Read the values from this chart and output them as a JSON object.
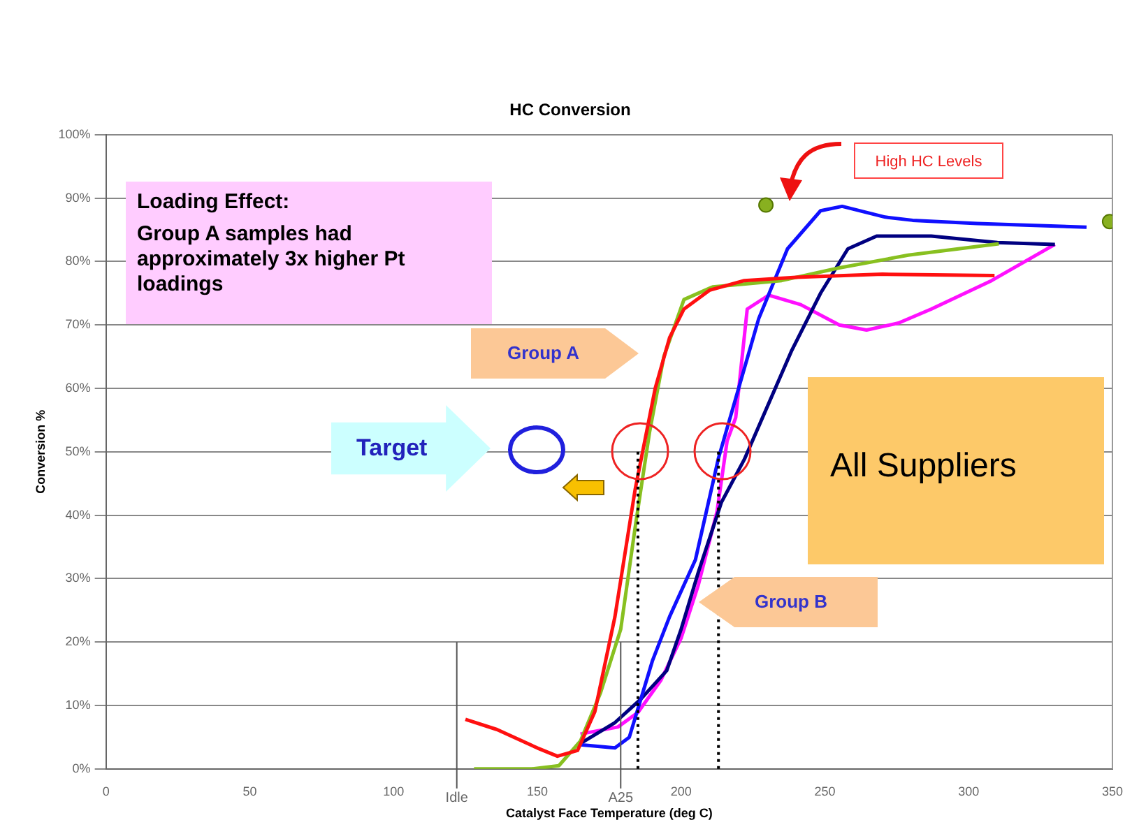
{
  "chart_data": {
    "type": "line",
    "title": "HC Conversion",
    "xlabel": "Catalyst Face Temperature (deg C)",
    "ylabel": "Conversion %",
    "xlim": [
      0,
      350
    ],
    "xticks": [
      0,
      50,
      100,
      150,
      200,
      250,
      300,
      350
    ],
    "ylim": [
      0,
      100
    ],
    "yticks": [
      {
        "value": 0,
        "label": "0%"
      },
      {
        "value": 10,
        "label": "10%"
      },
      {
        "value": 20,
        "label": "20%"
      },
      {
        "value": 30,
        "label": "30%"
      },
      {
        "value": 40,
        "label": "40%"
      },
      {
        "value": 50,
        "label": "50%"
      },
      {
        "value": 60,
        "label": "60%"
      },
      {
        "value": 70,
        "label": "70%"
      },
      {
        "value": 80,
        "label": "80%"
      },
      {
        "value": 90,
        "label": "90%"
      },
      {
        "value": 100,
        "label": "100%"
      }
    ],
    "grid": "y",
    "legend": false,
    "marker": "none",
    "line_style": "solid",
    "series": [
      {
        "color": "#ff1010",
        "x": [
          125,
          136,
          150,
          157,
          164,
          170,
          177,
          184,
          191,
          196,
          201,
          210,
          222,
          240,
          270,
          309
        ],
        "values": [
          7.8,
          6.2,
          3.3,
          2,
          2.9,
          9,
          24,
          44,
          60,
          68,
          72.5,
          75.5,
          77,
          77.5,
          78,
          77.8
        ]
      },
      {
        "color": "#88c020",
        "x": [
          128,
          148,
          157.5,
          165,
          172,
          179,
          184,
          189,
          194,
          201,
          211,
          235,
          255,
          279,
          310.5
        ],
        "values": [
          0,
          0,
          0.5,
          4.4,
          12,
          22,
          38,
          53,
          65,
          74,
          76,
          77,
          79,
          81,
          82.8
        ]
      },
      {
        "color": "#1010ff",
        "x": [
          165,
          177,
          182,
          186,
          190,
          196,
          205,
          213,
          227,
          237,
          248.5,
          256,
          271,
          280.5,
          303,
          341
        ],
        "values": [
          3.8,
          3.3,
          5,
          11,
          17,
          24,
          33,
          49,
          71,
          82,
          88,
          88.7,
          87,
          86.5,
          86,
          85.4
        ]
      },
      {
        "color": "#000080",
        "x": [
          165,
          177,
          186,
          195,
          200,
          206,
          214,
          222,
          238.5,
          248.5,
          258,
          268,
          287,
          310,
          330
        ],
        "values": [
          4,
          7.3,
          11,
          15.5,
          22,
          31,
          42,
          48.8,
          66,
          75,
          82,
          84,
          84,
          83,
          82.7
        ]
      },
      {
        "color": "#ff10ff",
        "x": [
          165,
          178,
          185,
          193,
          200,
          206,
          212.5,
          216,
          219,
          223,
          230.5,
          241.6,
          255,
          264.5,
          275.6,
          287,
          308,
          330
        ],
        "values": [
          5.5,
          6.6,
          8.9,
          14,
          20.6,
          29,
          40.6,
          51.7,
          55.4,
          72.5,
          74.7,
          73.2,
          70,
          69.2,
          70.3,
          72.5,
          77,
          82.7
        ]
      },
      {
        "type": "scatter",
        "marker": "circle",
        "color": "#88b020",
        "x": [
          229.5,
          349
        ],
        "values": [
          88.9,
          86.3
        ]
      }
    ],
    "ref_lines": [
      {
        "axis": "x",
        "value": 122,
        "label": "Idle",
        "color": "#555555",
        "line_style": "solid"
      },
      {
        "axis": "x",
        "value": 179,
        "label": "A25",
        "color": "#555555",
        "line_style": "solid"
      },
      {
        "axis": "x",
        "value": 185,
        "label": null,
        "color": "#000000",
        "line_style": "dotted"
      },
      {
        "axis": "x",
        "value": 213,
        "label": null,
        "color": "#000000",
        "line_style": "dotted"
      }
    ],
    "annotations": [
      "Loading Effect:",
      "Group A samples had approximately 3x higher Pt loadings",
      "Group A",
      "Group B",
      "Target",
      "All Suppliers",
      "High HC Levels"
    ]
  }
}
